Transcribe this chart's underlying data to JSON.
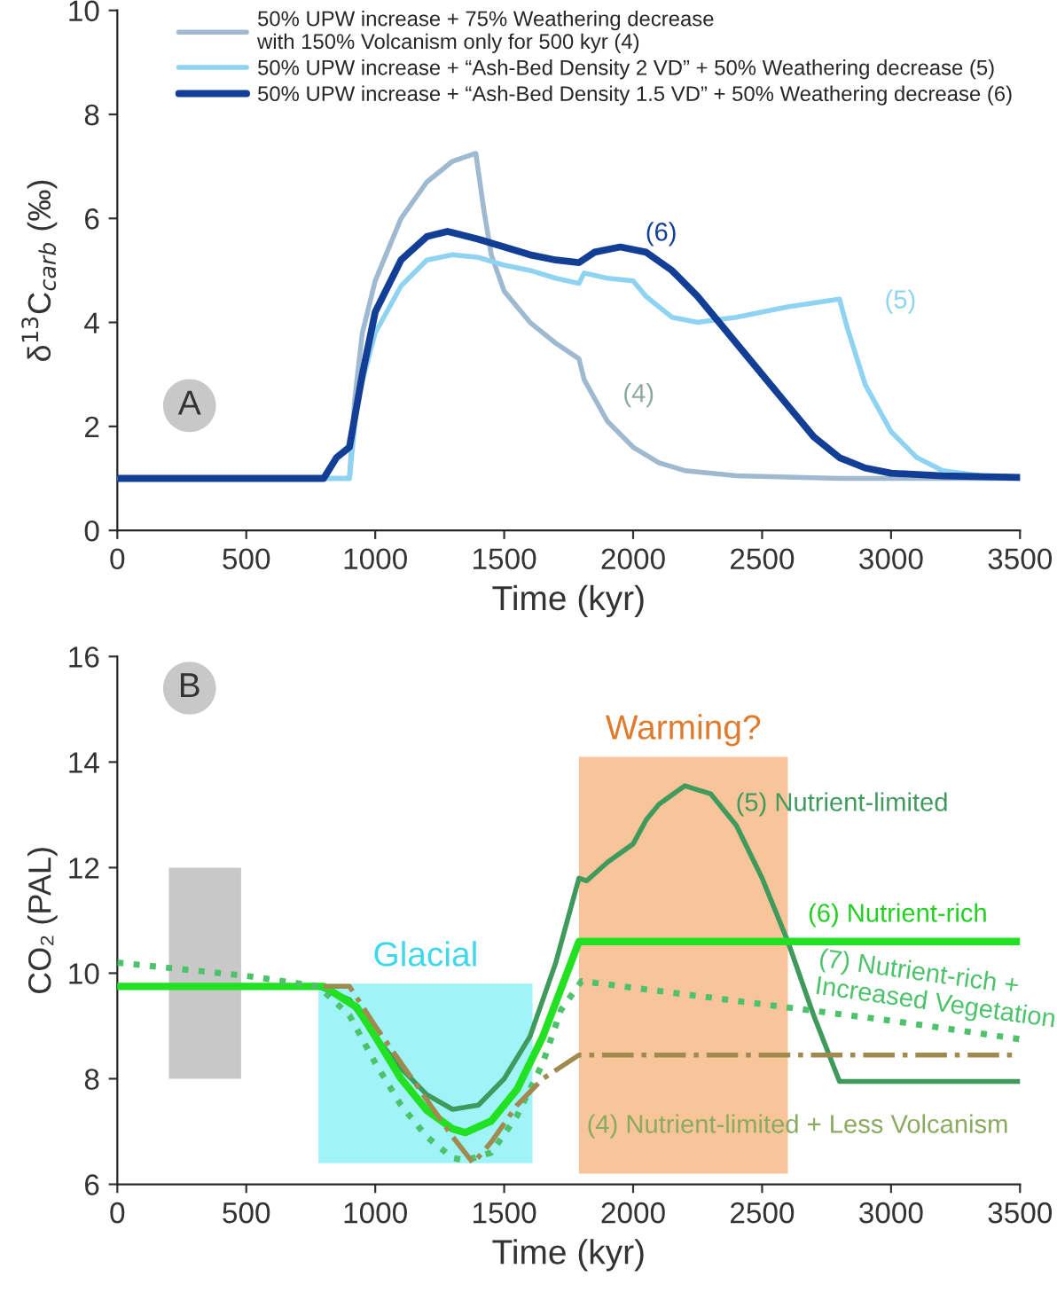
{
  "chart_data": [
    {
      "type": "line",
      "xlabel": "Time (kyr)",
      "ylabel": "δ$^{13}$C$_{carb}$ (‰)",
      "xlim": [
        0,
        3500
      ],
      "xticks": [
        0,
        500,
        1000,
        1500,
        2000,
        2500,
        3000,
        3500
      ],
      "ylim": [
        0,
        10
      ],
      "yticks": [
        0,
        2,
        4,
        6,
        8,
        10
      ],
      "grid": false,
      "legend": "top",
      "line_style": "solid",
      "marker": "none",
      "series": [
        {
          "name": "50% UPW increase + 75% Weathering decrease\nwith 150% Volcanism only for 500 kyr (4)",
          "color": "#9fbad0",
          "x": [
            0,
            900,
            920,
            950,
            1000,
            1100,
            1200,
            1300,
            1390,
            1420,
            1450,
            1500,
            1600,
            1700,
            1790,
            1810,
            1900,
            2000,
            2100,
            2200,
            2400,
            2800,
            3500
          ],
          "values": [
            1,
            1,
            2.5,
            3.8,
            4.8,
            6.0,
            6.7,
            7.1,
            7.25,
            6.2,
            5.3,
            4.6,
            4.0,
            3.6,
            3.3,
            2.9,
            2.1,
            1.6,
            1.3,
            1.15,
            1.05,
            1.0,
            1.0
          ]
        },
        {
          "name": "50% UPW increase + “Ash-Bed Density 2 VD” + 50% Weathering decrease (5)",
          "color": "#8fd3f2",
          "x": [
            0,
            900,
            930,
            1000,
            1100,
            1200,
            1300,
            1400,
            1500,
            1600,
            1700,
            1790,
            1810,
            1900,
            2000,
            2050,
            2150,
            2250,
            2400,
            2600,
            2800,
            2830,
            2900,
            3000,
            3100,
            3200,
            3350,
            3500
          ],
          "values": [
            1,
            1,
            2.5,
            3.8,
            4.7,
            5.2,
            5.3,
            5.25,
            5.1,
            5.0,
            4.85,
            4.75,
            4.95,
            4.85,
            4.8,
            4.5,
            4.1,
            4.0,
            4.1,
            4.3,
            4.45,
            3.9,
            2.8,
            1.9,
            1.4,
            1.15,
            1.05,
            1.03
          ]
        },
        {
          "name": "50% UPW increase + “Ash-Bed Density 1.5 VD” + 50% Weathering decrease (6)",
          "color": "#123f95",
          "x": [
            0,
            800,
            850,
            900,
            950,
            1000,
            1100,
            1200,
            1280,
            1400,
            1500,
            1600,
            1700,
            1790,
            1850,
            1950,
            2050,
            2150,
            2250,
            2400,
            2500,
            2600,
            2700,
            2800,
            2900,
            3000,
            3200,
            3500
          ],
          "values": [
            1,
            1,
            1.4,
            1.6,
            3.0,
            4.2,
            5.2,
            5.65,
            5.75,
            5.6,
            5.45,
            5.3,
            5.2,
            5.15,
            5.35,
            5.45,
            5.35,
            5.0,
            4.5,
            3.6,
            3.0,
            2.4,
            1.8,
            1.4,
            1.2,
            1.1,
            1.05,
            1.02
          ]
        }
      ],
      "annotations": [
        "A",
        "(6)",
        "(5)",
        "(4)"
      ]
    },
    {
      "type": "line",
      "xlabel": "Time (kyr)",
      "ylabel": "CO₂ (PAL)",
      "xlim": [
        0,
        3500
      ],
      "xticks": [
        0,
        500,
        1000,
        1500,
        2000,
        2500,
        3000,
        3500
      ],
      "ylim": [
        6,
        16
      ],
      "yticks": [
        6,
        8,
        10,
        12,
        14,
        16
      ],
      "grid": false,
      "marker": "none",
      "bands": [
        {
          "axis": "x",
          "from": 200,
          "to": 480,
          "color": "#c8c8c8"
        },
        {
          "axis": "x",
          "from": 780,
          "to": 1610,
          "color": "#a0f4f8",
          "label": "Glacial"
        },
        {
          "axis": "x",
          "from": 1790,
          "to": 2600,
          "color": "#f8c49a",
          "label": "Warming?"
        }
      ],
      "series": [
        {
          "color": "#3f9a5c",
          "line_style": "solid",
          "x": [
            0,
            780,
            900,
            1000,
            1100,
            1200,
            1300,
            1400,
            1500,
            1600,
            1700,
            1790,
            1820,
            1900,
            2000,
            2050,
            2100,
            2200,
            2300,
            2400,
            2500,
            2600,
            2700,
            2800,
            3500
          ],
          "values": [
            9.75,
            9.75,
            9.5,
            8.8,
            8.2,
            7.7,
            7.42,
            7.5,
            8.0,
            8.8,
            10.2,
            11.8,
            11.75,
            12.1,
            12.45,
            12.9,
            13.2,
            13.55,
            13.4,
            12.8,
            11.8,
            10.6,
            9.2,
            7.95,
            7.95
          ]
        },
        {
          "color": "#22e022",
          "line_style": "solid",
          "x": [
            0,
            800,
            930,
            1000,
            1100,
            1200,
            1300,
            1350,
            1450,
            1550,
            1650,
            1790,
            3500
          ],
          "values": [
            9.75,
            9.75,
            9.35,
            8.8,
            8.0,
            7.4,
            7.05,
            6.98,
            7.2,
            7.8,
            8.8,
            10.6,
            10.6
          ]
        },
        {
          "color": "#4cc26a",
          "line_style": "dotted",
          "x": [
            0,
            500,
            780,
            900,
            1000,
            1100,
            1200,
            1300,
            1350,
            1450,
            1550,
            1650,
            1720,
            1800,
            2600,
            3000,
            3500
          ],
          "values": [
            10.2,
            9.95,
            9.75,
            9.2,
            8.3,
            7.5,
            6.9,
            6.5,
            6.45,
            6.6,
            7.3,
            8.3,
            9.3,
            9.85,
            9.35,
            9.1,
            8.75
          ]
        },
        {
          "color": "#a08a50",
          "line_style": "dashdot",
          "x": [
            800,
            900,
            1000,
            1100,
            1200,
            1300,
            1380,
            1450,
            1550,
            1650,
            1790,
            3500
          ],
          "values": [
            9.75,
            9.75,
            9.0,
            8.3,
            7.6,
            6.9,
            6.4,
            6.8,
            7.5,
            8.0,
            8.45,
            8.45
          ]
        }
      ],
      "annotations": [
        "B",
        "(5) Nutrient-limited",
        "(6) Nutrient-rich",
        "(7) Nutrient-rich +\nIncreased Vegetation",
        "(4) Nutrient-limited + Less Volcanism"
      ]
    }
  ]
}
